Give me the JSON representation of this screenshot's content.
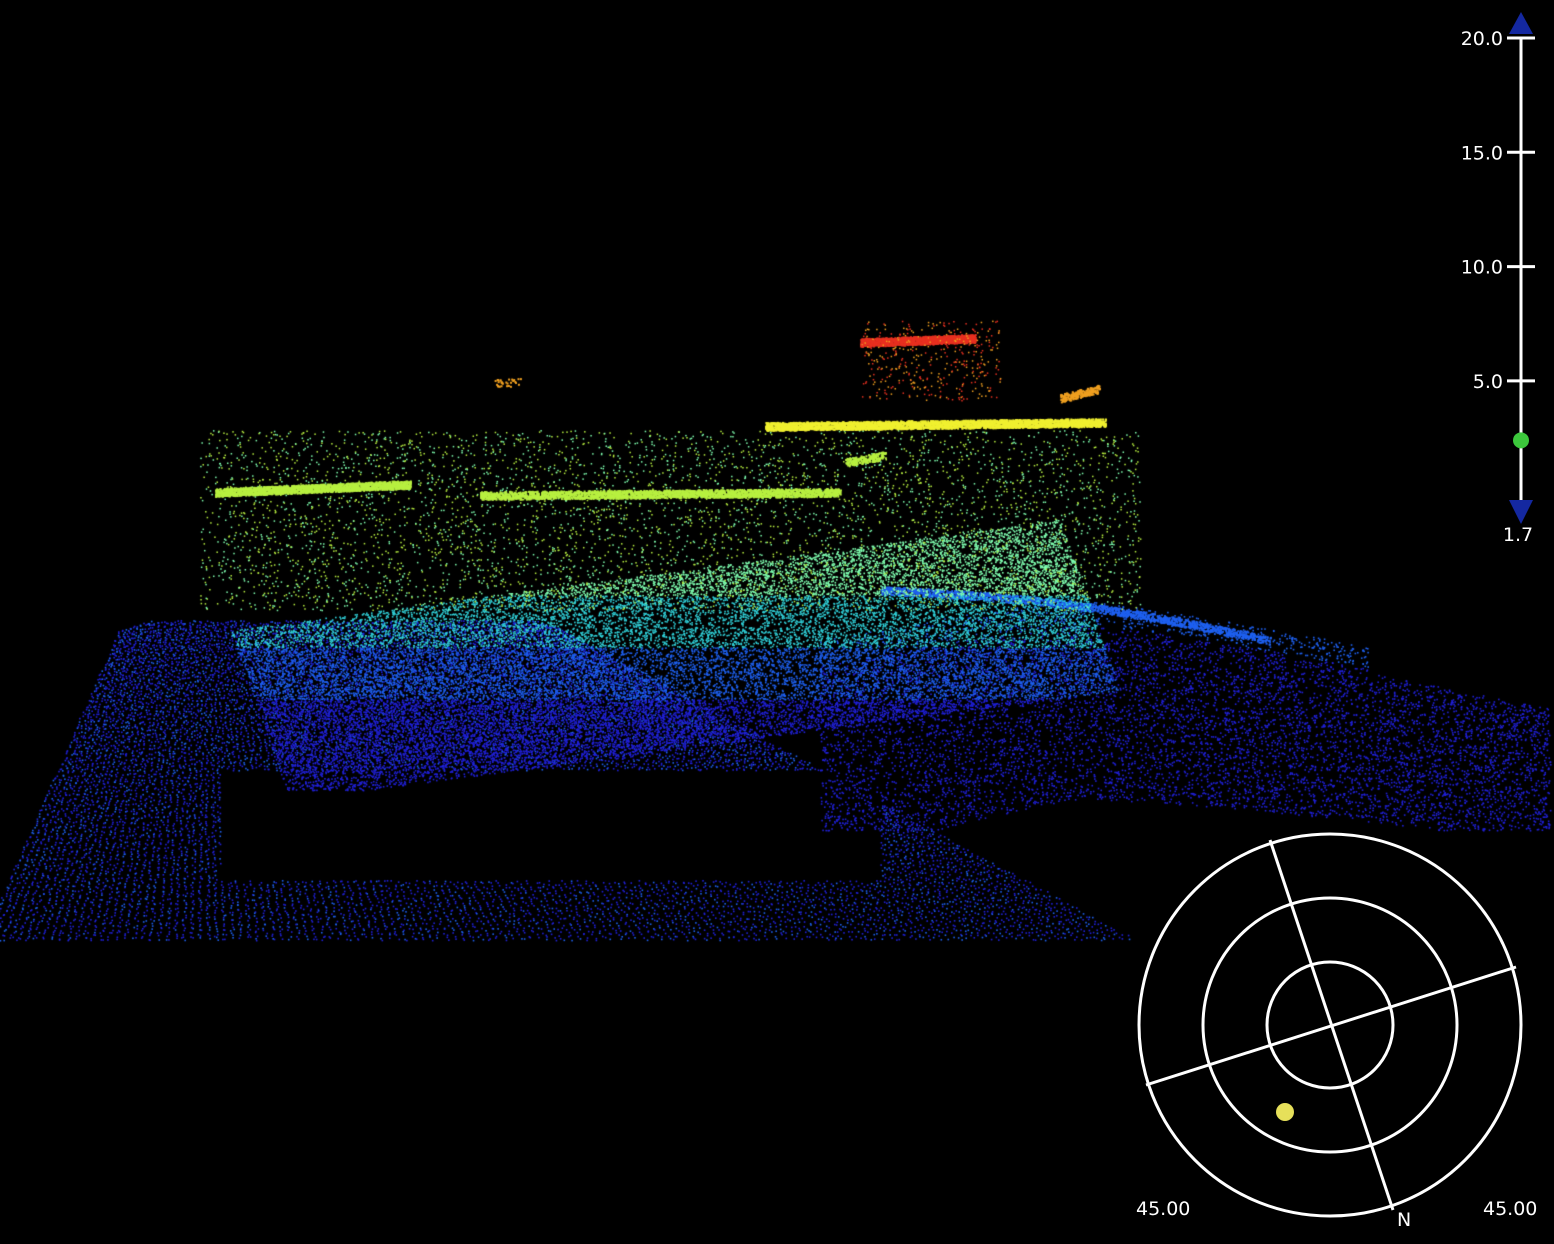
{
  "viewer": {
    "colors": {
      "background": "#000000",
      "scale_axis": "#ffffff",
      "marker_arrow": "#1428a0",
      "level_handle": "#3cc83c",
      "target_dot": "#e6e05a",
      "ramp": [
        "#2020d8",
        "#1e60f0",
        "#30d0d8",
        "#7fffb0",
        "#b8f040",
        "#f0f030",
        "#f0a020",
        "#e83020"
      ]
    },
    "elevation_scale": {
      "ticks": [
        "20.0",
        "15.0",
        "10.0",
        "5.0"
      ],
      "tick_values": [
        20,
        15,
        10,
        5
      ],
      "max_value": 20.0,
      "min_value": 1.7,
      "min_label": "1.7",
      "handle_value": 2.4
    },
    "compass": {
      "north_label": "N",
      "left_angle_label": "45.00",
      "right_angle_label": "45.00",
      "ring_count": 3
    }
  }
}
